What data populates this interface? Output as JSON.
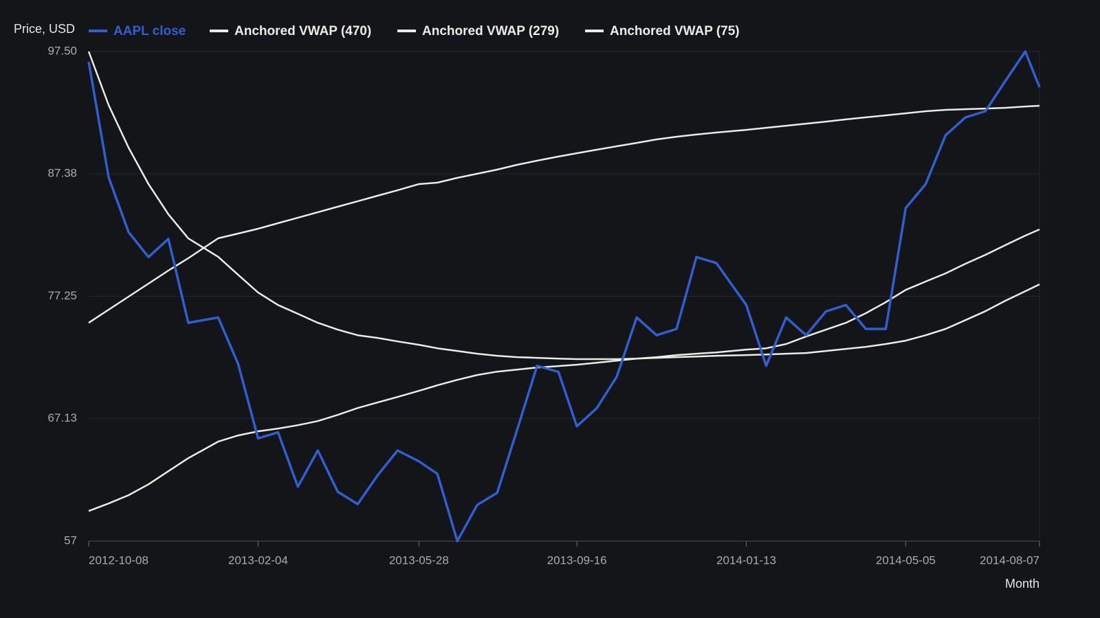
{
  "chart_data": {
    "type": "line",
    "y_label": "Price, USD",
    "x_label": "Month",
    "x": [
      "2012-10-08",
      "2012-10-22",
      "2012-11-05",
      "2012-11-19",
      "2012-12-03",
      "2012-12-17",
      "2013-01-07",
      "2013-01-21",
      "2013-02-04",
      "2013-02-18",
      "2013-03-04",
      "2013-03-18",
      "2013-04-01",
      "2013-04-15",
      "2013-04-29",
      "2013-05-13",
      "2013-05-28",
      "2013-06-10",
      "2013-06-24",
      "2013-07-08",
      "2013-07-22",
      "2013-08-05",
      "2013-08-19",
      "2013-09-03",
      "2013-09-16",
      "2013-09-30",
      "2013-10-14",
      "2013-10-28",
      "2013-11-11",
      "2013-11-25",
      "2013-12-09",
      "2013-12-23",
      "2014-01-13",
      "2014-01-27",
      "2014-02-10",
      "2014-02-24",
      "2014-03-10",
      "2014-03-24",
      "2014-04-07",
      "2014-04-21",
      "2014-05-05",
      "2014-05-19",
      "2014-06-02",
      "2014-06-16",
      "2014-06-30",
      "2014-07-14",
      "2014-07-28",
      "2014-08-07"
    ],
    "series": [
      {
        "name": "AAPL close",
        "color": "#2f5fd0",
        "values": [
          96.65,
          87.1,
          82.56,
          80.5,
          82.0,
          75.06,
          75.5,
          71.65,
          65.5,
          66.0,
          61.5,
          64.5,
          61.08,
          60.06,
          62.44,
          64.5,
          63.6,
          62.56,
          57,
          60.0,
          61.0,
          66.2,
          71.5,
          71.0,
          66.5,
          68.0,
          70.6,
          75.5,
          74.03,
          74.55,
          80.5,
          80.0,
          76.53,
          71.5,
          75.5,
          74.03,
          76.0,
          76.53,
          74.55,
          74.55,
          84.55,
          86.53,
          90.57,
          92.05,
          92.56,
          95.06,
          97.5,
          94.55
        ]
      },
      {
        "name": "Anchored VWAP (470)",
        "color": "#ecebe6",
        "values": [
          97.5,
          93.07,
          89.55,
          86.53,
          84.03,
          82.04,
          80.51,
          79.03,
          77.56,
          76.53,
          75.8,
          75.06,
          74.49,
          74.03,
          73.81,
          73.52,
          73.24,
          72.95,
          72.73,
          72.5,
          72.33,
          72.22,
          72.16,
          72.1,
          72.05,
          72.05,
          72.05,
          72.1,
          72.16,
          72.22,
          72.27,
          72.33,
          72.39,
          72.44,
          72.5,
          72.56,
          72.73,
          72.9,
          73.07,
          73.3,
          73.58,
          74.03,
          74.55,
          75.28,
          76.02,
          76.88,
          77.67,
          78.24
        ]
      },
      {
        "name": "Anchored VWAP (279)",
        "color": "#ecebe6",
        "values": [
          75.06,
          76.14,
          77.22,
          78.3,
          79.38,
          80.4,
          82.05,
          82.44,
          82.84,
          83.3,
          83.75,
          84.2,
          84.66,
          85.11,
          85.57,
          86.02,
          86.53,
          86.65,
          87.05,
          87.39,
          87.73,
          88.13,
          88.47,
          88.81,
          89.09,
          89.38,
          89.66,
          89.94,
          90.23,
          90.45,
          90.63,
          90.8,
          91.02,
          91.19,
          91.36,
          91.53,
          91.7,
          91.88,
          92.05,
          92.22,
          92.39,
          92.56,
          92.67,
          92.73,
          92.78,
          92.84,
          92.95,
          93.01
        ]
      },
      {
        "name": "Anchored VWAP (75)",
        "color": "#ecebe6",
        "values": [
          59.49,
          60.11,
          60.8,
          61.7,
          62.78,
          63.86,
          65.23,
          65.74,
          66.08,
          66.31,
          66.59,
          66.93,
          67.44,
          68.01,
          68.47,
          68.92,
          69.43,
          69.89,
          70.34,
          70.74,
          71.02,
          71.19,
          71.36,
          71.48,
          71.59,
          71.76,
          71.93,
          72.1,
          72.22,
          72.39,
          72.5,
          72.61,
          72.84,
          72.95,
          73.3,
          73.92,
          74.49,
          75.06,
          75.85,
          76.76,
          77.78,
          78.47,
          79.15,
          79.94,
          80.68,
          81.48,
          82.27,
          82.78
        ]
      }
    ],
    "xlim": [
      "2012-10-08",
      "2014-08-07"
    ],
    "xticks": [
      "2012-10-08",
      "2013-02-04",
      "2013-05-28",
      "2013-09-16",
      "2014-01-13",
      "2014-05-05",
      "2014-08-07"
    ],
    "ylim": [
      57,
      97.5
    ],
    "yticks": [
      57,
      67.13,
      77.25,
      87.38,
      {
        "value": 97.5,
        "label": "97.50"
      }
    ],
    "grid": true
  }
}
